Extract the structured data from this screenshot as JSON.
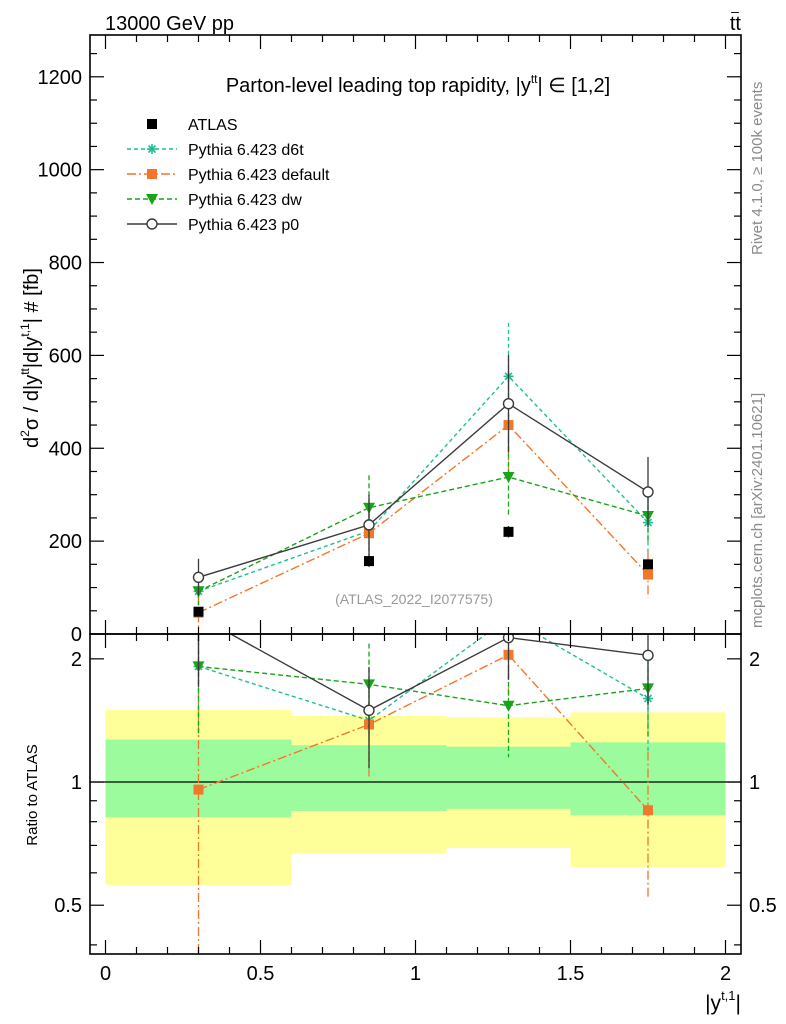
{
  "header": {
    "left": "13000 GeV pp",
    "right_main": "tt",
    "right_bar": "–"
  },
  "side_labels": {
    "rivet": "Rivet 4.1.0, ≥ 100k events",
    "mcplots": "mcplots.cern.ch [arXiv:2401.10621]"
  },
  "chart_data": {
    "type": "line",
    "title": "Parton-level leading top rapidity, |y̅̅| ∈ [1,2]",
    "title_parts": {
      "prefix": "Parton-level leading top rapidity, |y",
      "sup": "tt",
      "suffix": "| ∈ [1,2]"
    },
    "analysis_id": "(ATLAS_2022_I2077575)",
    "ylabel": "d²σ / d|y^tt|d|y^t,1| # [fb]",
    "ylabel_parts": {
      "a": "d",
      "a_sup": "2",
      "b": "σ / d|y",
      "b_sup": "tt",
      "c": "|d|y",
      "c_sup": "t,1",
      "d": "| # [fb]"
    },
    "xlabel": "|y^t,1|",
    "xlabel_parts": {
      "base": "|y",
      "sup": "t,1",
      "end": "|"
    },
    "ratio_ylabel": "Ratio to ATLAS",
    "xlim": [
      -0.05,
      2.05
    ],
    "ylim": [
      0,
      1290
    ],
    "ratio_ylim": [
      0.38,
      2.3
    ],
    "x_ticks": [
      "0",
      "0.5",
      "1",
      "1.5",
      "2"
    ],
    "y_ticks": [
      "0",
      "200",
      "400",
      "600",
      "800",
      "1000",
      "1200"
    ],
    "ratio_ticks": [
      "0.5",
      "1",
      "2"
    ],
    "bins": [
      {
        "lo": 0.0,
        "hi": 0.6
      },
      {
        "lo": 0.6,
        "hi": 1.1
      },
      {
        "lo": 1.1,
        "hi": 1.5
      },
      {
        "lo": 1.5,
        "hi": 2.0
      }
    ],
    "band_inner": [
      [
        0.82,
        1.27
      ],
      [
        0.85,
        1.23
      ],
      [
        0.86,
        1.22
      ],
      [
        0.83,
        1.25
      ]
    ],
    "band_outer": [
      [
        0.56,
        1.5
      ],
      [
        0.67,
        1.45
      ],
      [
        0.69,
        1.44
      ],
      [
        0.62,
        1.48
      ]
    ],
    "data": {
      "name": "ATLAS",
      "x": [
        0.3,
        0.85,
        1.3,
        1.75
      ],
      "y": [
        48,
        157,
        220,
        150
      ],
      "err": [
        8,
        12,
        12,
        10
      ]
    },
    "series": [
      {
        "name": "Pythia 6.423 d6t",
        "color": "#1fbf96",
        "dash": "4,3",
        "marker": "asterisk",
        "x": [
          0.3,
          0.85,
          1.3,
          1.75
        ],
        "y": [
          92,
          222,
          555,
          240
        ],
        "err": [
          30,
          55,
          115,
          65
        ]
      },
      {
        "name": "Pythia 6.423 default",
        "color": "#f2772b",
        "dash": "9,3,2,3",
        "marker": "square",
        "x": [
          0.3,
          0.85,
          1.3,
          1.75
        ],
        "y": [
          46,
          217,
          450,
          128
        ],
        "err": [
          35,
          55,
          100,
          50
        ]
      },
      {
        "name": "Pythia 6.423 dw",
        "color": "#18a418",
        "dash": "5,3",
        "marker": "triangle-down",
        "x": [
          0.3,
          0.85,
          1.3,
          1.75
        ],
        "y": [
          92,
          272,
          338,
          254
        ],
        "err": [
          30,
          70,
          85,
          60
        ]
      },
      {
        "name": "Pythia 6.423 p0",
        "color": "#3a3a3a",
        "dash": "",
        "marker": "circle-open",
        "x": [
          0.3,
          0.85,
          1.3,
          1.75
        ],
        "y": [
          122,
          235,
          496,
          306
        ],
        "err": [
          40,
          65,
          105,
          75
        ]
      }
    ]
  }
}
